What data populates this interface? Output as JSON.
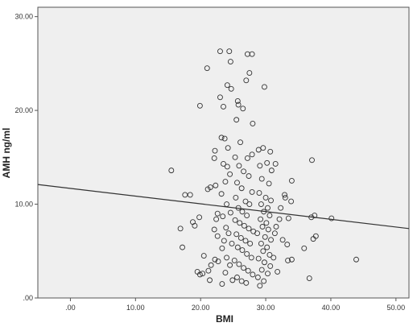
{
  "chart_data": {
    "type": "scatter",
    "title": "",
    "xlabel": "BMI",
    "ylabel": "AMH ng/ml",
    "xlim": [
      -5,
      52
    ],
    "ylim": [
      0,
      31
    ],
    "x_ticks": [
      0,
      10,
      20,
      30,
      40,
      50
    ],
    "x_tick_labels": [
      ".00",
      "10.00",
      "20.00",
      "30.00",
      "40.00",
      "50.00"
    ],
    "y_ticks": [
      0,
      10,
      20,
      30
    ],
    "y_tick_labels": [
      ".00",
      "10.00",
      "20.00",
      "30.00"
    ],
    "grid": false,
    "plot_background": "#efefef",
    "point_color": "#333333",
    "line_color": "#333333",
    "fit_line": {
      "x": [
        -5,
        52
      ],
      "y": [
        12.1,
        7.4
      ]
    },
    "series": [
      {
        "points": [
          [
            15.5,
            13.6
          ],
          [
            17.6,
            11.0
          ],
          [
            18.4,
            11.0
          ],
          [
            16.9,
            7.4
          ],
          [
            17.2,
            5.4
          ],
          [
            18.8,
            8.1
          ],
          [
            19.1,
            7.7
          ],
          [
            19.8,
            8.6
          ],
          [
            19.5,
            2.8
          ],
          [
            19.9,
            2.5
          ],
          [
            20.3,
            2.6
          ],
          [
            20.5,
            4.5
          ],
          [
            21.0,
            24.5
          ],
          [
            19.9,
            20.5
          ],
          [
            21.1,
            11.6
          ],
          [
            21.5,
            11.8
          ],
          [
            22.1,
            14.9
          ],
          [
            22.2,
            15.7
          ],
          [
            22.3,
            12.0
          ],
          [
            22.6,
            9.0
          ],
          [
            22.4,
            8.4
          ],
          [
            22.1,
            7.3
          ],
          [
            22.6,
            6.6
          ],
          [
            22.2,
            4.1
          ],
          [
            22.7,
            3.9
          ],
          [
            21.2,
            2.9
          ],
          [
            21.4,
            1.9
          ],
          [
            21.6,
            3.5
          ],
          [
            23.0,
            26.3
          ],
          [
            24.4,
            26.3
          ],
          [
            24.6,
            25.2
          ],
          [
            24.1,
            22.7
          ],
          [
            24.7,
            22.3
          ],
          [
            23.0,
            21.4
          ],
          [
            23.5,
            20.4
          ],
          [
            23.2,
            17.1
          ],
          [
            23.7,
            17.0
          ],
          [
            24.2,
            16.0
          ],
          [
            23.5,
            14.3
          ],
          [
            24.1,
            14.0
          ],
          [
            24.5,
            13.2
          ],
          [
            23.8,
            12.4
          ],
          [
            23.2,
            11.1
          ],
          [
            24.0,
            10.0
          ],
          [
            24.6,
            9.1
          ],
          [
            23.4,
            8.7
          ],
          [
            23.9,
            7.5
          ],
          [
            24.3,
            6.9
          ],
          [
            23.6,
            6.1
          ],
          [
            24.8,
            5.8
          ],
          [
            23.3,
            5.3
          ],
          [
            24.0,
            4.3
          ],
          [
            24.5,
            3.5
          ],
          [
            23.8,
            2.7
          ],
          [
            24.9,
            1.9
          ],
          [
            23.3,
            1.5
          ],
          [
            27.2,
            26.0
          ],
          [
            27.9,
            26.0
          ],
          [
            27.5,
            24.0
          ],
          [
            27.0,
            23.2
          ],
          [
            25.7,
            21.0
          ],
          [
            25.8,
            20.6
          ],
          [
            26.5,
            20.2
          ],
          [
            25.5,
            19.0
          ],
          [
            28.0,
            18.6
          ],
          [
            26.1,
            16.6
          ],
          [
            25.3,
            15.0
          ],
          [
            27.2,
            14.9
          ],
          [
            27.9,
            15.3
          ],
          [
            25.9,
            14.1
          ],
          [
            26.6,
            13.5
          ],
          [
            27.4,
            13.0
          ],
          [
            25.6,
            12.3
          ],
          [
            26.3,
            11.7
          ],
          [
            27.9,
            11.3
          ],
          [
            25.4,
            10.7
          ],
          [
            26.9,
            10.3
          ],
          [
            27.5,
            10.0
          ],
          [
            25.8,
            9.6
          ],
          [
            26.4,
            9.2
          ],
          [
            27.1,
            8.8
          ],
          [
            25.3,
            8.3
          ],
          [
            26.0,
            8.0
          ],
          [
            26.7,
            7.7
          ],
          [
            27.4,
            7.4
          ],
          [
            28.1,
            7.1
          ],
          [
            25.5,
            6.8
          ],
          [
            26.2,
            6.4
          ],
          [
            26.9,
            6.1
          ],
          [
            27.6,
            5.8
          ],
          [
            25.7,
            5.4
          ],
          [
            26.4,
            5.1
          ],
          [
            27.1,
            4.7
          ],
          [
            27.8,
            4.3
          ],
          [
            25.2,
            4.0
          ],
          [
            25.9,
            3.6
          ],
          [
            26.6,
            3.2
          ],
          [
            27.3,
            2.9
          ],
          [
            28.0,
            2.5
          ],
          [
            25.6,
            2.2
          ],
          [
            26.3,
            1.8
          ],
          [
            27.0,
            1.6
          ],
          [
            29.8,
            22.5
          ],
          [
            28.9,
            15.8
          ],
          [
            29.6,
            16.0
          ],
          [
            30.7,
            15.6
          ],
          [
            30.2,
            14.4
          ],
          [
            29.1,
            14.1
          ],
          [
            30.9,
            13.6
          ],
          [
            29.4,
            12.7
          ],
          [
            30.5,
            12.2
          ],
          [
            29.0,
            11.2
          ],
          [
            30.0,
            10.7
          ],
          [
            30.8,
            10.4
          ],
          [
            29.3,
            10.0
          ],
          [
            30.3,
            9.6
          ],
          [
            29.7,
            9.2
          ],
          [
            30.6,
            8.8
          ],
          [
            29.2,
            8.4
          ],
          [
            30.1,
            8.0
          ],
          [
            29.5,
            7.6
          ],
          [
            30.4,
            7.3
          ],
          [
            28.7,
            6.9
          ],
          [
            29.9,
            6.5
          ],
          [
            30.8,
            6.2
          ],
          [
            29.3,
            5.8
          ],
          [
            30.2,
            5.4
          ],
          [
            29.6,
            5.0
          ],
          [
            30.6,
            4.6
          ],
          [
            28.9,
            4.2
          ],
          [
            29.8,
            3.8
          ],
          [
            30.7,
            3.4
          ],
          [
            29.4,
            3.0
          ],
          [
            30.3,
            2.6
          ],
          [
            28.8,
            2.2
          ],
          [
            29.7,
            1.8
          ],
          [
            29.1,
            1.3
          ],
          [
            31.5,
            14.3
          ],
          [
            32.3,
            9.6
          ],
          [
            33.0,
            10.7
          ],
          [
            33.5,
            8.5
          ],
          [
            32.1,
            8.4
          ],
          [
            31.6,
            7.6
          ],
          [
            31.4,
            6.9
          ],
          [
            32.6,
            6.2
          ],
          [
            33.3,
            5.7
          ],
          [
            31.2,
            4.3
          ],
          [
            33.4,
            4.0
          ],
          [
            34.0,
            4.1
          ],
          [
            31.8,
            2.8
          ],
          [
            33.9,
            10.3
          ],
          [
            32.9,
            11.0
          ],
          [
            34.0,
            12.5
          ],
          [
            35.9,
            5.3
          ],
          [
            36.7,
            2.1
          ],
          [
            37.1,
            14.7
          ],
          [
            37.3,
            6.3
          ],
          [
            37.7,
            6.6
          ],
          [
            37.0,
            8.6
          ],
          [
            37.5,
            8.8
          ],
          [
            40.1,
            8.5
          ],
          [
            43.9,
            4.1
          ]
        ]
      }
    ]
  }
}
